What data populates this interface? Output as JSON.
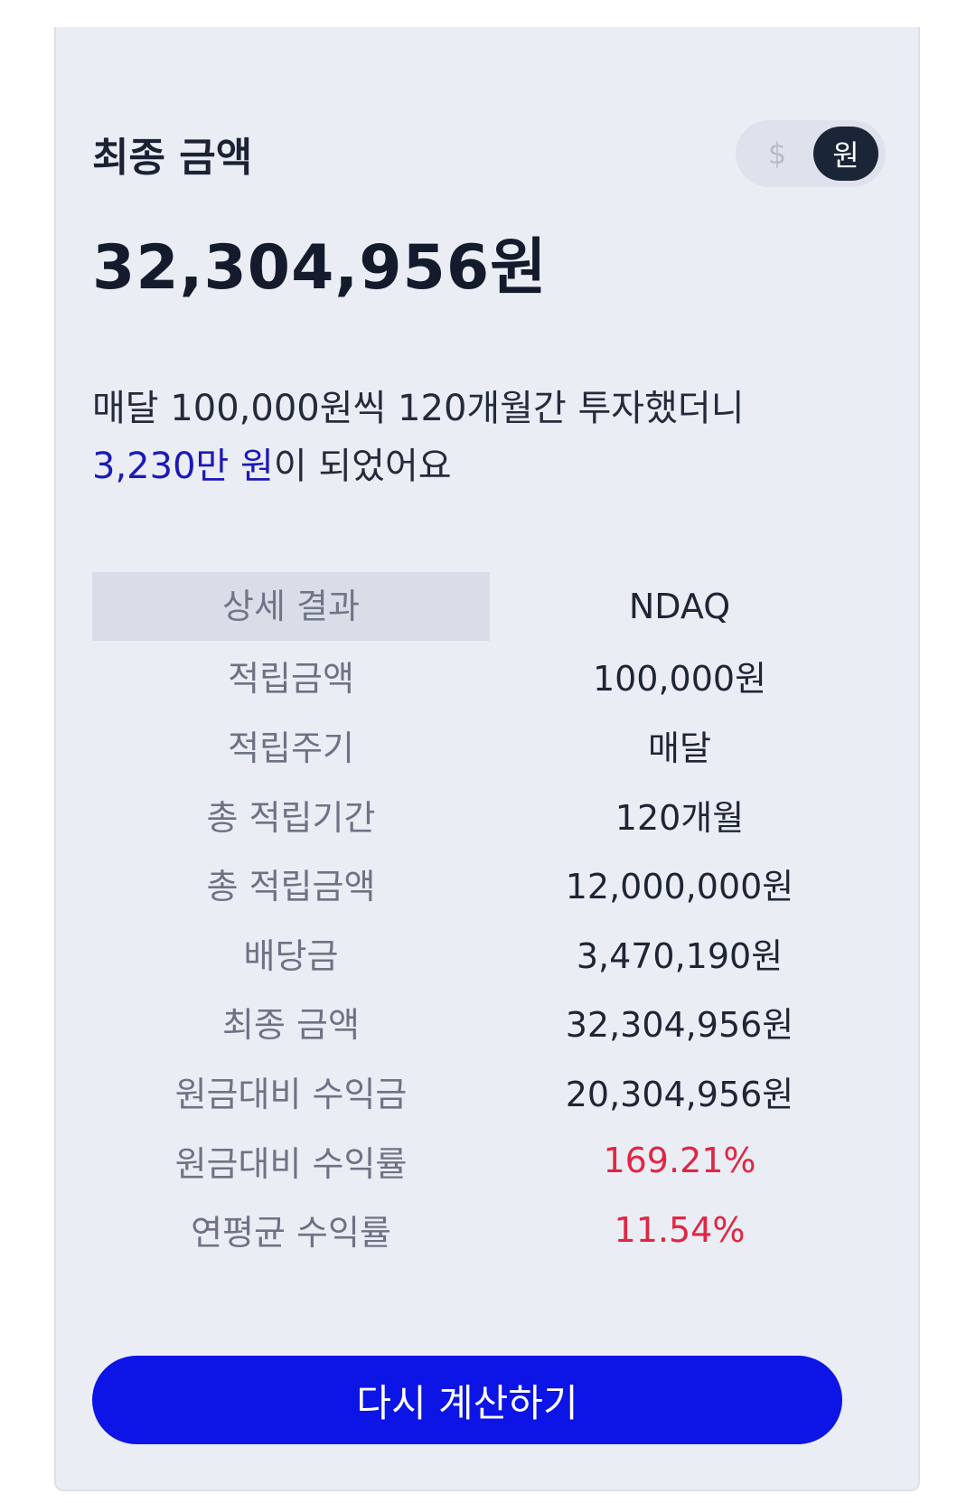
{
  "header": {
    "title": "최종 금액",
    "currency_toggle": {
      "dollar_label": "$",
      "won_label": "원",
      "selected": "원"
    }
  },
  "final_amount": "32,304,956원",
  "summary": {
    "line1": "매달 100,000원씩 120개월간 투자했더니",
    "line2_highlight": "3,230만 원",
    "line2_rest": "이 되었어요"
  },
  "results": {
    "header_label": "상세 결과",
    "header_value": "NDAQ",
    "rows": [
      {
        "label": "적립금액",
        "value": "100,000원"
      },
      {
        "label": "적립주기",
        "value": "매달"
      },
      {
        "label": "총 적립기간",
        "value": "120개월"
      },
      {
        "label": "총 적립금액",
        "value": "12,000,000원"
      },
      {
        "label": "배당금",
        "value": "3,470,190원"
      },
      {
        "label": "최종 금액",
        "value": "32,304,956원"
      },
      {
        "label": "원금대비 수익금",
        "value": "20,304,956원"
      },
      {
        "label": "원금대비 수익률",
        "value": "169.21%"
      },
      {
        "label": "연평균 수익률",
        "value": "11.54%"
      }
    ]
  },
  "colors": {
    "accent": "#0c14e6",
    "positive_return": "#e02643",
    "highlight": "#1a1ab8"
  },
  "recalculate_button": "다시 계산하기"
}
